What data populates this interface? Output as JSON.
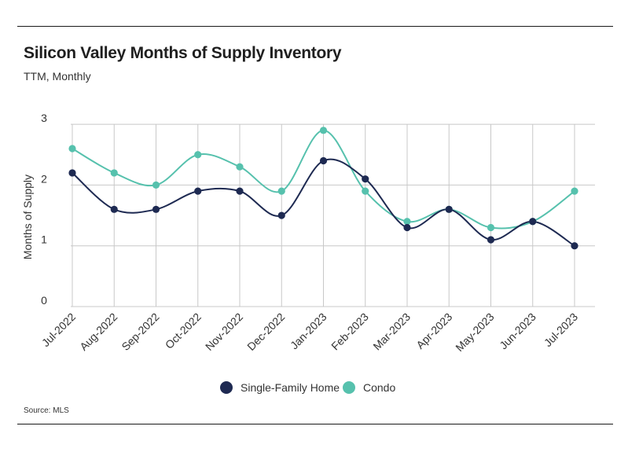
{
  "header": {
    "title": "Silicon Valley Months of Supply Inventory",
    "subtitle": "TTM, Monthly"
  },
  "footer": {
    "source": "Source:  MLS"
  },
  "colors": {
    "single_family": "#1e2a52",
    "condo": "#56c1ad",
    "grid": "#c8c8c8",
    "rule": "#1a1a1a"
  },
  "chart_data": {
    "type": "line",
    "title": "Silicon Valley Months of Supply Inventory",
    "subtitle": "TTM, Monthly",
    "xlabel": "",
    "ylabel": "Months of Supply",
    "ylim": [
      0,
      3
    ],
    "yticks": [
      0,
      1,
      2,
      3
    ],
    "grid": true,
    "smooth": true,
    "legend_position": "bottom-center",
    "categories": [
      "Jul-2022",
      "Aug-2022",
      "Sep-2022",
      "Oct-2022",
      "Nov-2022",
      "Dec-2022",
      "Jan-2023",
      "Feb-2023",
      "Mar-2023",
      "Apr-2023",
      "May-2023",
      "Jun-2023",
      "Jul-2023"
    ],
    "series": [
      {
        "name": "Single-Family Home",
        "color": "#1e2a52",
        "values": [
          2.2,
          1.6,
          1.6,
          1.9,
          1.9,
          1.5,
          2.4,
          2.1,
          1.3,
          1.6,
          1.1,
          1.4,
          1.0
        ]
      },
      {
        "name": "Condo",
        "color": "#56c1ad",
        "values": [
          2.6,
          2.2,
          2.0,
          2.5,
          2.3,
          1.9,
          2.9,
          1.9,
          1.4,
          1.6,
          1.3,
          1.4,
          1.9
        ]
      }
    ],
    "source": "Source:  MLS"
  }
}
